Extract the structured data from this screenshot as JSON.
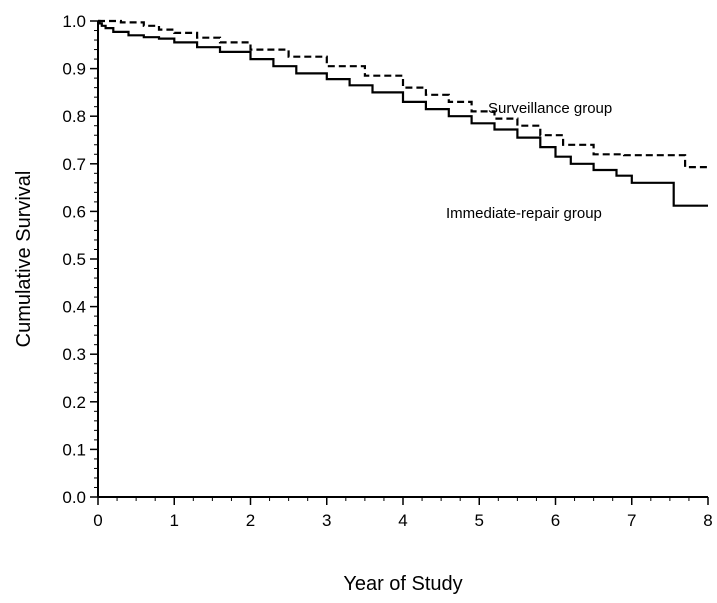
{
  "chart_data": {
    "type": "line",
    "title": "",
    "xlabel": "Year of Study",
    "ylabel": "Cumulative Survival",
    "xlim": [
      0,
      8
    ],
    "ylim": [
      0.0,
      1.0
    ],
    "x_ticks": [
      "0",
      "1",
      "2",
      "3",
      "4",
      "5",
      "6",
      "7",
      "8"
    ],
    "y_ticks": [
      "0.0",
      "0.1",
      "0.2",
      "0.3",
      "0.4",
      "0.5",
      "0.6",
      "0.7",
      "0.8",
      "0.9",
      "1.0"
    ],
    "grid": false,
    "step": true,
    "series": [
      {
        "name": "Surveillance group",
        "line_style": "dashed",
        "color": "#000000",
        "x": [
          0,
          0.3,
          0.6,
          0.8,
          1.0,
          1.3,
          1.6,
          2.0,
          2.5,
          3.0,
          3.5,
          4.0,
          4.3,
          4.6,
          4.9,
          5.2,
          5.5,
          5.8,
          6.1,
          6.5,
          6.9,
          7.2,
          7.4,
          7.55,
          7.7,
          8.0
        ],
        "y": [
          1.0,
          0.997,
          0.99,
          0.982,
          0.975,
          0.965,
          0.955,
          0.94,
          0.925,
          0.905,
          0.885,
          0.86,
          0.845,
          0.83,
          0.81,
          0.795,
          0.78,
          0.76,
          0.74,
          0.72,
          0.718,
          0.718,
          0.718,
          0.718,
          0.693,
          0.693
        ]
      },
      {
        "name": "Immediate-repair group",
        "line_style": "solid",
        "color": "#000000",
        "x": [
          0,
          0.02,
          0.05,
          0.1,
          0.2,
          0.4,
          0.6,
          0.8,
          1.0,
          1.3,
          1.6,
          2.0,
          2.3,
          2.6,
          3.0,
          3.3,
          3.6,
          4.0,
          4.3,
          4.6,
          4.9,
          5.2,
          5.5,
          5.8,
          6.0,
          6.2,
          6.5,
          6.8,
          7.0,
          7.2,
          7.5,
          7.55,
          8.0
        ],
        "y": [
          1.0,
          0.995,
          0.99,
          0.985,
          0.977,
          0.97,
          0.966,
          0.963,
          0.955,
          0.945,
          0.935,
          0.92,
          0.905,
          0.89,
          0.878,
          0.865,
          0.85,
          0.83,
          0.815,
          0.8,
          0.785,
          0.772,
          0.755,
          0.735,
          0.715,
          0.7,
          0.687,
          0.675,
          0.66,
          0.66,
          0.66,
          0.612,
          0.612
        ]
      }
    ],
    "annotations": [
      {
        "text": "Surveillance group",
        "series": "Surveillance group"
      },
      {
        "text": "Immediate-repair group",
        "series": "Immediate-repair group"
      }
    ]
  }
}
